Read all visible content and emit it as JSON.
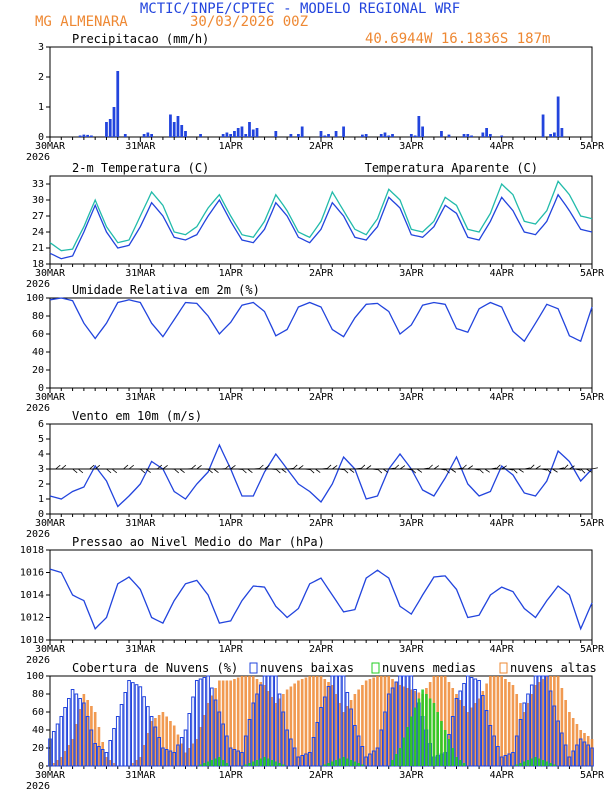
{
  "header": {
    "line1": "MCTIC/INPE/CPTEC - MODELO REGIONAL WRF",
    "station": "MG ALMENARA",
    "datetime": "30/03/2026 00Z",
    "coords": "40.6944W 16.1836S 187m"
  },
  "colors": {
    "blue": "#2244dd",
    "orange": "#ee8833",
    "cyan": "#22bbaa",
    "green": "#22cc22",
    "black": "#000000"
  },
  "x_axis": {
    "labels": [
      "30MAR",
      "31MAR",
      "1APR",
      "2APR",
      "3APR",
      "4APR",
      "5APR"
    ],
    "year": "2026",
    "hours_total": 144
  },
  "chart_data": [
    {
      "id": "precip",
      "type": "bar",
      "title": "Precipitacao (mm/h)",
      "ylim": [
        0,
        3
      ],
      "yticks": [
        "0",
        "1",
        "2",
        "3"
      ],
      "series": [
        {
          "name": "precip",
          "color": "#2244dd",
          "hours": [
            8,
            9,
            10,
            11,
            15,
            16,
            17,
            18,
            20,
            25,
            26,
            27,
            32,
            33,
            34,
            35,
            36,
            40,
            46,
            47,
            48,
            49,
            50,
            51,
            52,
            53,
            54,
            55,
            60,
            64,
            66,
            67,
            72,
            73,
            74,
            76,
            78,
            83,
            84,
            88,
            89,
            90,
            91,
            96,
            97,
            98,
            99,
            104,
            106,
            110,
            111,
            112,
            115,
            116,
            117,
            120,
            131,
            133,
            134,
            135,
            136
          ],
          "values": [
            0.05,
            0.08,
            0.07,
            0.05,
            0.5,
            0.6,
            1.0,
            2.2,
            0.1,
            0.1,
            0.15,
            0.1,
            0.75,
            0.5,
            0.7,
            0.4,
            0.2,
            0.1,
            0.1,
            0.15,
            0.1,
            0.2,
            0.3,
            0.35,
            0.1,
            0.5,
            0.25,
            0.3,
            0.2,
            0.1,
            0.1,
            0.35,
            0.2,
            0.05,
            0.1,
            0.2,
            0.35,
            0.08,
            0.1,
            0.1,
            0.15,
            0.05,
            0.1,
            0.1,
            0.05,
            0.7,
            0.35,
            0.2,
            0.08,
            0.1,
            0.1,
            0.05,
            0.15,
            0.3,
            0.1,
            0.05,
            0.75,
            0.1,
            0.15,
            1.35,
            0.3
          ]
        }
      ]
    },
    {
      "id": "temp",
      "type": "line",
      "title": "2-m Temperatura (C)",
      "legend_right": "Temperatura Aparente (C)",
      "ylim": [
        18,
        34.5
      ],
      "yticks": [
        "18",
        "21",
        "24",
        "27",
        "30",
        "33"
      ],
      "series": [
        {
          "name": "Temperatura Aparente (C)",
          "color": "#22bbaa",
          "hours": [
            0,
            3,
            6,
            9,
            12,
            15,
            18,
            21,
            24,
            27,
            30,
            33,
            36,
            39,
            42,
            45,
            48,
            51,
            54,
            57,
            60,
            63,
            66,
            69,
            72,
            75,
            78,
            81,
            84,
            87,
            90,
            93,
            96,
            99,
            102,
            105,
            108,
            111,
            114,
            117,
            120,
            123,
            126,
            129,
            132,
            135,
            138,
            141,
            144
          ],
          "values": [
            22,
            20.5,
            20.8,
            25,
            30,
            25,
            22,
            22.5,
            27,
            31.5,
            29,
            24,
            23.5,
            25,
            28.5,
            31,
            27,
            23.5,
            23,
            26,
            31,
            28,
            24,
            23,
            26,
            31.5,
            28,
            24.5,
            23.5,
            26.5,
            32,
            30,
            24.5,
            24,
            26,
            30.5,
            29,
            24.5,
            24,
            27.5,
            33,
            31,
            26,
            25.5,
            28,
            33.5,
            31,
            27,
            26.5
          ]
        },
        {
          "name": "2-m Temperatura (C)",
          "color": "#2244dd",
          "hours": [
            0,
            3,
            6,
            9,
            12,
            15,
            18,
            21,
            24,
            27,
            30,
            33,
            36,
            39,
            42,
            45,
            48,
            51,
            54,
            57,
            60,
            63,
            66,
            69,
            72,
            75,
            78,
            81,
            84,
            87,
            90,
            93,
            96,
            99,
            102,
            105,
            108,
            111,
            114,
            117,
            120,
            123,
            126,
            129,
            132,
            135,
            138,
            141,
            144
          ],
          "values": [
            20,
            19,
            19.5,
            24,
            29,
            24,
            21,
            21.5,
            25,
            29.5,
            27,
            23,
            22.5,
            23.5,
            27,
            30,
            26,
            22.5,
            22,
            24.5,
            29.5,
            27,
            23,
            22,
            24.5,
            29.5,
            27,
            23,
            22.5,
            25,
            30.5,
            28.5,
            23.5,
            23,
            25,
            29,
            27.5,
            23,
            22.5,
            26,
            30.5,
            28,
            24,
            23.5,
            26,
            31,
            28,
            24.5,
            24
          ]
        }
      ]
    },
    {
      "id": "rh",
      "type": "line",
      "title": "Umidade Relativa em 2m (%)",
      "ylim": [
        0,
        100
      ],
      "yticks": [
        "0",
        "20",
        "40",
        "60",
        "80",
        "100"
      ],
      "series": [
        {
          "name": "Umidade Relativa",
          "color": "#2244dd",
          "hours": [
            0,
            3,
            6,
            9,
            12,
            15,
            18,
            21,
            24,
            27,
            30,
            33,
            36,
            39,
            42,
            45,
            48,
            51,
            54,
            57,
            60,
            63,
            66,
            69,
            72,
            75,
            78,
            81,
            84,
            87,
            90,
            93,
            96,
            99,
            102,
            105,
            108,
            111,
            114,
            117,
            120,
            123,
            126,
            129,
            132,
            135,
            138,
            141,
            144
          ],
          "values": [
            98,
            100,
            97,
            72,
            55,
            72,
            95,
            98,
            95,
            72,
            57,
            76,
            95,
            94,
            80,
            60,
            73,
            92,
            95,
            85,
            58,
            65,
            90,
            95,
            90,
            65,
            57,
            78,
            93,
            94,
            85,
            60,
            70,
            92,
            95,
            93,
            66,
            62,
            88,
            95,
            90,
            63,
            52,
            72,
            93,
            88,
            58,
            52,
            90
          ]
        }
      ]
    },
    {
      "id": "wind",
      "type": "line",
      "title": "Vento em 10m (m/s)",
      "ylim": [
        0,
        6
      ],
      "yticks": [
        "0",
        "1",
        "2",
        "3",
        "4",
        "5",
        "6"
      ],
      "series": [
        {
          "name": "Vento",
          "color": "#2244dd",
          "hours": [
            0,
            3,
            6,
            9,
            12,
            15,
            18,
            21,
            24,
            27,
            30,
            33,
            36,
            39,
            42,
            45,
            48,
            51,
            54,
            57,
            60,
            63,
            66,
            69,
            72,
            75,
            78,
            81,
            84,
            87,
            90,
            93,
            96,
            99,
            102,
            105,
            108,
            111,
            114,
            117,
            120,
            123,
            126,
            129,
            132,
            135,
            138,
            141,
            144
          ],
          "values": [
            1.2,
            1.0,
            1.5,
            1.8,
            3.2,
            2.2,
            0.5,
            1.2,
            2.0,
            3.5,
            3.0,
            1.5,
            1.0,
            2.0,
            2.8,
            4.6,
            3.0,
            1.2,
            1.2,
            2.8,
            4.0,
            3.0,
            2.0,
            1.5,
            0.8,
            2.0,
            3.8,
            3.0,
            1.0,
            1.2,
            3.0,
            4.0,
            3.0,
            1.6,
            1.2,
            2.4,
            3.8,
            2.0,
            1.2,
            1.5,
            3.2,
            2.6,
            1.4,
            1.2,
            2.2,
            4.2,
            3.5,
            2.2,
            3.0
          ]
        }
      ],
      "wind_barbs_level": 3.0
    },
    {
      "id": "pressure",
      "type": "line",
      "title": "Pressao ao Nivel Medio do Mar (hPa)",
      "ylim": [
        1010,
        1018
      ],
      "yticks": [
        "1010",
        "1012",
        "1014",
        "1016",
        "1018"
      ],
      "series": [
        {
          "name": "Pressao",
          "color": "#2244dd",
          "hours": [
            0,
            3,
            6,
            9,
            12,
            15,
            18,
            21,
            24,
            27,
            30,
            33,
            36,
            39,
            42,
            45,
            48,
            51,
            54,
            57,
            60,
            63,
            66,
            69,
            72,
            75,
            78,
            81,
            84,
            87,
            90,
            93,
            96,
            99,
            102,
            105,
            108,
            111,
            114,
            117,
            120,
            123,
            126,
            129,
            132,
            135,
            138,
            141,
            144
          ],
          "values": [
            1016.3,
            1016,
            1014,
            1013.5,
            1011,
            1012,
            1015,
            1015.6,
            1014.5,
            1012,
            1011.5,
            1013.5,
            1015,
            1015.3,
            1014,
            1011.5,
            1011.7,
            1013.5,
            1014.8,
            1014.7,
            1013,
            1012,
            1012.8,
            1015,
            1015.5,
            1014,
            1012.5,
            1012.7,
            1015.5,
            1016.2,
            1015.5,
            1013,
            1012.3,
            1014,
            1015.6,
            1015.7,
            1014.5,
            1012,
            1012.2,
            1014,
            1014.7,
            1014.3,
            1012.8,
            1012,
            1013.5,
            1014.8,
            1014,
            1011,
            1013.3
          ]
        }
      ]
    },
    {
      "id": "clouds",
      "type": "bar",
      "title": "Cobertura de Nuvens (%)",
      "ylim": [
        0,
        100
      ],
      "yticks": [
        "0",
        "20",
        "40",
        "60",
        "80",
        "100"
      ],
      "legend": [
        "nuvens baixas",
        "nuvens medias",
        "nuvens altas"
      ],
      "series": [
        {
          "name": "nuvens baixas",
          "color": "#2244dd",
          "hours": [
            0,
            3,
            6,
            9,
            12,
            15,
            18,
            21,
            24,
            27,
            30,
            33,
            36,
            39,
            42,
            45,
            48,
            51,
            54,
            57,
            60,
            63,
            66,
            69,
            72,
            75,
            78,
            81,
            84,
            87,
            90,
            93,
            96,
            99,
            102,
            105,
            108,
            111,
            114,
            117,
            120,
            123,
            126,
            129,
            132,
            135,
            138,
            141,
            144
          ],
          "values": [
            30,
            55,
            85,
            70,
            25,
            15,
            55,
            95,
            88,
            55,
            20,
            15,
            40,
            95,
            100,
            60,
            20,
            15,
            70,
            100,
            100,
            40,
            10,
            15,
            65,
            100,
            100,
            45,
            10,
            20,
            80,
            100,
            100,
            55,
            10,
            15,
            75,
            100,
            95,
            45,
            10,
            15,
            70,
            100,
            100,
            50,
            10,
            30,
            20
          ]
        },
        {
          "name": "nuvens medias",
          "color": "#22cc22",
          "hours": [
            0,
            3,
            6,
            9,
            12,
            15,
            18,
            21,
            24,
            27,
            30,
            33,
            36,
            39,
            42,
            45,
            48,
            51,
            54,
            57,
            60,
            63,
            66,
            69,
            72,
            75,
            78,
            81,
            84,
            87,
            90,
            93,
            96,
            99,
            102,
            105,
            108,
            111,
            114,
            117,
            120,
            123,
            126,
            129,
            132,
            135,
            138,
            141,
            144
          ],
          "values": [
            0,
            0,
            0,
            0,
            0,
            0,
            0,
            0,
            0,
            0,
            0,
            0,
            0,
            0,
            5,
            10,
            0,
            0,
            5,
            10,
            5,
            0,
            0,
            0,
            0,
            5,
            10,
            5,
            0,
            0,
            0,
            20,
            55,
            85,
            70,
            40,
            10,
            0,
            0,
            0,
            0,
            0,
            5,
            10,
            5,
            0,
            0,
            0,
            0
          ]
        },
        {
          "name": "nuvens altas",
          "color": "#ee8833",
          "hours": [
            0,
            3,
            6,
            9,
            12,
            15,
            18,
            21,
            24,
            27,
            30,
            33,
            36,
            39,
            42,
            45,
            48,
            51,
            54,
            57,
            60,
            63,
            66,
            69,
            72,
            75,
            78,
            81,
            84,
            87,
            90,
            93,
            96,
            99,
            102,
            105,
            108,
            111,
            114,
            117,
            120,
            123,
            126,
            129,
            132,
            135,
            138,
            141,
            144
          ],
          "values": [
            0,
            10,
            30,
            80,
            60,
            10,
            0,
            0,
            10,
            50,
            60,
            45,
            15,
            30,
            70,
            95,
            95,
            100,
            100,
            90,
            70,
            85,
            95,
            100,
            100,
            90,
            60,
            80,
            95,
            100,
            100,
            90,
            85,
            80,
            100,
            100,
            80,
            60,
            75,
            100,
            100,
            90,
            60,
            90,
            100,
            100,
            60,
            40,
            30
          ]
        }
      ]
    }
  ]
}
